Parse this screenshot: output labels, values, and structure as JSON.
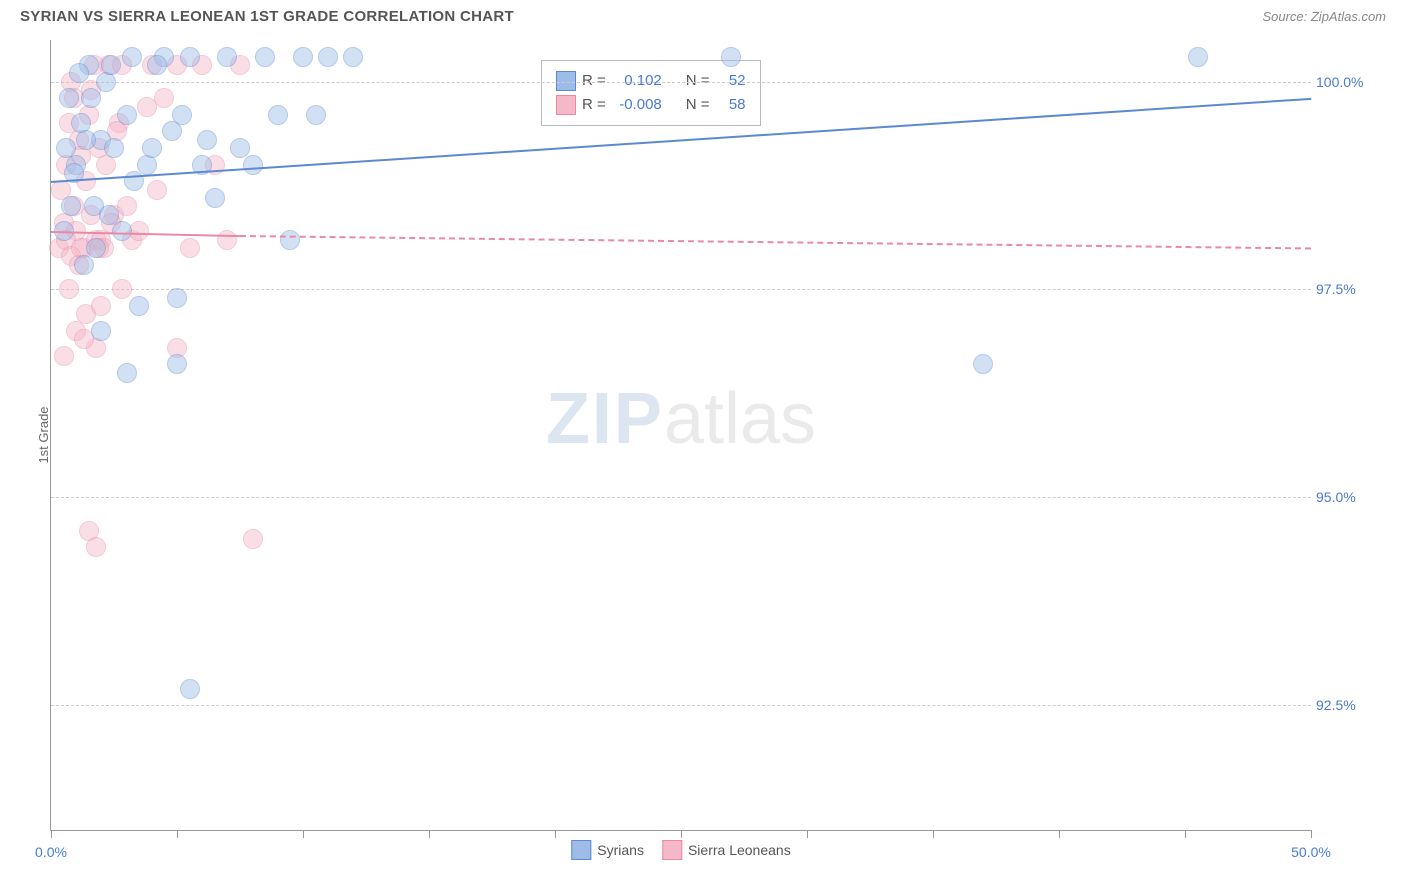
{
  "header": {
    "title": "SYRIAN VS SIERRA LEONEAN 1ST GRADE CORRELATION CHART",
    "source": "Source: ZipAtlas.com"
  },
  "chart": {
    "type": "scatter",
    "y_axis_title": "1st Grade",
    "background_color": "#ffffff",
    "grid_color": "#cccccc",
    "axis_color": "#999999",
    "tick_label_color": "#4a7bd0",
    "tick_fontsize": 14,
    "xlim": [
      0,
      50
    ],
    "ylim": [
      91.0,
      100.5
    ],
    "x_ticks": [
      0,
      5,
      10,
      15,
      20,
      25,
      30,
      35,
      40,
      45,
      50
    ],
    "x_tick_labels": {
      "0": "0.0%",
      "50": "50.0%"
    },
    "y_ticks": [
      92.5,
      95.0,
      97.5,
      100.0
    ],
    "y_tick_labels": [
      "92.5%",
      "95.0%",
      "97.5%",
      "100.0%"
    ],
    "marker_radius": 9,
    "marker_opacity": 0.45,
    "marker_border_width": 1.5,
    "watermark": {
      "zip": "ZIP",
      "atlas": "atlas"
    }
  },
  "series": {
    "blue": {
      "label": "Syrians",
      "fill": "#9dbce8",
      "stroke": "#5b8ad0",
      "r_label": "R =",
      "r_value": "0.102",
      "n_label": "N =",
      "n_value": "52",
      "trend": {
        "x1": 0,
        "y1": 98.8,
        "x2": 50,
        "y2": 99.8,
        "width": 2
      },
      "points": [
        [
          0.5,
          98.2
        ],
        [
          0.8,
          98.5
        ],
        [
          1.0,
          99.0
        ],
        [
          1.2,
          99.5
        ],
        [
          1.5,
          100.2
        ],
        [
          1.8,
          98.0
        ],
        [
          2.0,
          99.3
        ],
        [
          2.2,
          100.0
        ],
        [
          2.5,
          99.2
        ],
        [
          2.8,
          98.2
        ],
        [
          3.0,
          99.6
        ],
        [
          3.2,
          100.3
        ],
        [
          3.5,
          97.3
        ],
        [
          3.8,
          99.0
        ],
        [
          4.0,
          99.2
        ],
        [
          4.5,
          100.3
        ],
        [
          5.0,
          96.6
        ],
        [
          5.2,
          99.6
        ],
        [
          5.5,
          100.3
        ],
        [
          6.0,
          99.0
        ],
        [
          6.5,
          98.6
        ],
        [
          7.0,
          100.3
        ],
        [
          7.5,
          99.2
        ],
        [
          8.0,
          99.0
        ],
        [
          8.5,
          100.3
        ],
        [
          9.0,
          99.6
        ],
        [
          9.5,
          98.1
        ],
        [
          10.0,
          100.3
        ],
        [
          10.5,
          99.6
        ],
        [
          11.0,
          100.3
        ],
        [
          5.5,
          92.7
        ],
        [
          5.0,
          97.4
        ],
        [
          12.0,
          100.3
        ],
        [
          27.0,
          100.3
        ],
        [
          37.0,
          96.6
        ],
        [
          45.5,
          100.3
        ],
        [
          3.0,
          96.5
        ],
        [
          2.0,
          97.0
        ],
        [
          1.3,
          97.8
        ],
        [
          0.7,
          99.8
        ],
        [
          2.4,
          100.2
        ],
        [
          4.2,
          100.2
        ],
        [
          1.6,
          99.8
        ],
        [
          0.9,
          98.9
        ],
        [
          1.1,
          100.1
        ],
        [
          3.3,
          98.8
        ],
        [
          1.7,
          98.5
        ],
        [
          2.3,
          98.4
        ],
        [
          1.4,
          99.3
        ],
        [
          0.6,
          99.2
        ],
        [
          4.8,
          99.4
        ],
        [
          6.2,
          99.3
        ]
      ]
    },
    "pink": {
      "label": "Sierra Leoneans",
      "fill": "#f5b8c8",
      "stroke": "#e88aa5",
      "r_label": "R =",
      "r_value": "-0.008",
      "n_label": "N =",
      "n_value": "58",
      "trend": {
        "x1": 0,
        "y1": 98.2,
        "x2": 7.5,
        "y2": 98.15,
        "solid_end": 7.5,
        "dash_x2": 50,
        "dash_y2": 98.0,
        "width": 2
      },
      "points": [
        [
          0.3,
          98.0
        ],
        [
          0.5,
          98.3
        ],
        [
          0.6,
          99.0
        ],
        [
          0.7,
          99.5
        ],
        [
          0.8,
          100.0
        ],
        [
          0.9,
          98.5
        ],
        [
          1.0,
          98.2
        ],
        [
          1.1,
          99.3
        ],
        [
          1.2,
          99.1
        ],
        [
          1.3,
          98.0
        ],
        [
          1.4,
          98.8
        ],
        [
          1.5,
          99.6
        ],
        [
          1.6,
          98.4
        ],
        [
          1.7,
          100.2
        ],
        [
          1.8,
          98.1
        ],
        [
          1.9,
          99.2
        ],
        [
          2.0,
          98.1
        ],
        [
          2.1,
          98.0
        ],
        [
          2.2,
          99.0
        ],
        [
          2.3,
          100.2
        ],
        [
          2.5,
          98.4
        ],
        [
          2.7,
          99.5
        ],
        [
          2.8,
          100.2
        ],
        [
          3.0,
          98.5
        ],
        [
          3.2,
          98.1
        ],
        [
          3.5,
          98.2
        ],
        [
          3.8,
          99.7
        ],
        [
          4.0,
          100.2
        ],
        [
          4.2,
          98.7
        ],
        [
          4.5,
          99.8
        ],
        [
          5.0,
          100.2
        ],
        [
          5.5,
          98.0
        ],
        [
          6.0,
          100.2
        ],
        [
          6.5,
          99.0
        ],
        [
          7.0,
          98.1
        ],
        [
          7.5,
          100.2
        ],
        [
          1.0,
          97.0
        ],
        [
          1.4,
          97.2
        ],
        [
          2.0,
          97.3
        ],
        [
          0.7,
          97.5
        ],
        [
          1.8,
          96.8
        ],
        [
          2.8,
          97.5
        ],
        [
          1.3,
          96.9
        ],
        [
          5.0,
          96.8
        ],
        [
          1.5,
          94.6
        ],
        [
          1.8,
          94.4
        ],
        [
          8.0,
          94.5
        ],
        [
          0.5,
          96.7
        ],
        [
          0.4,
          98.7
        ],
        [
          0.6,
          98.1
        ],
        [
          0.8,
          97.9
        ],
        [
          1.1,
          97.8
        ],
        [
          1.9,
          98.0
        ],
        [
          2.4,
          98.3
        ],
        [
          0.9,
          99.8
        ],
        [
          1.2,
          98.0
        ],
        [
          1.6,
          99.9
        ],
        [
          2.6,
          99.4
        ]
      ]
    }
  },
  "bottom_legend": {
    "items": [
      {
        "key": "blue",
        "label": "Syrians"
      },
      {
        "key": "pink",
        "label": "Sierra Leoneans"
      }
    ]
  }
}
